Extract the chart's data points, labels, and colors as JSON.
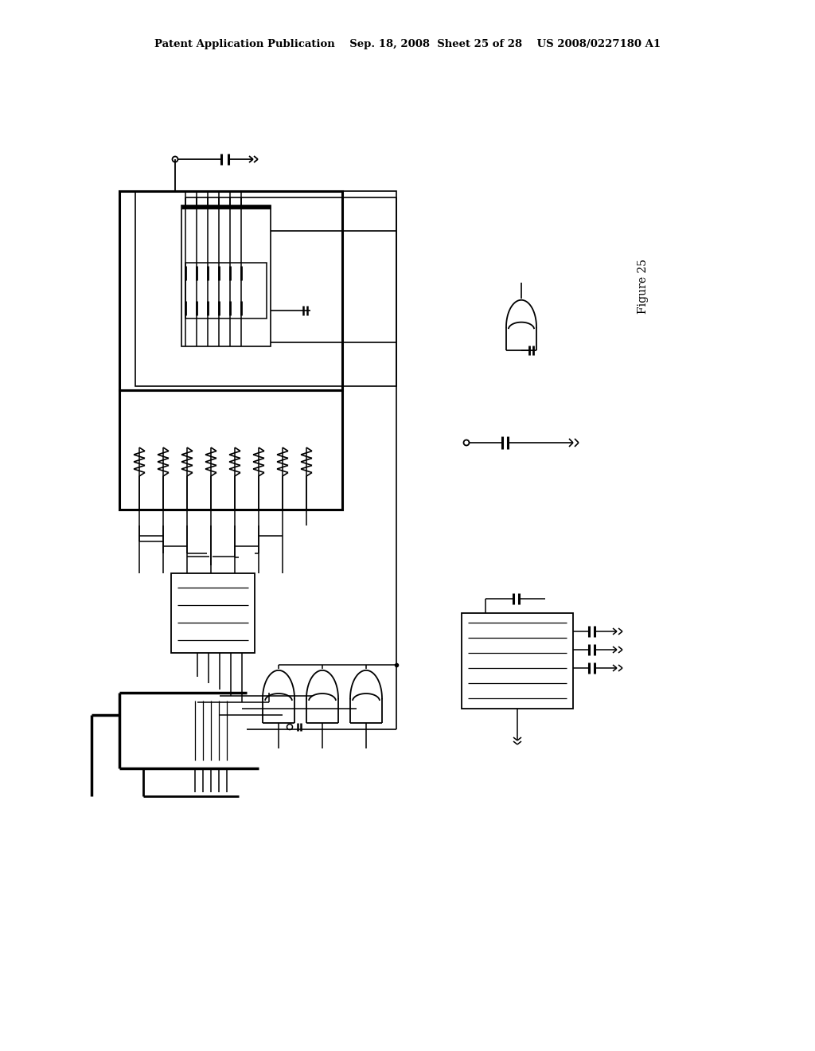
{
  "bg_color": "#ffffff",
  "line_color": "#000000",
  "header_text": "Patent Application Publication    Sep. 18, 2008  Sheet 25 of 28    US 2008/0227180 A1",
  "figure_label": "Figure 25"
}
